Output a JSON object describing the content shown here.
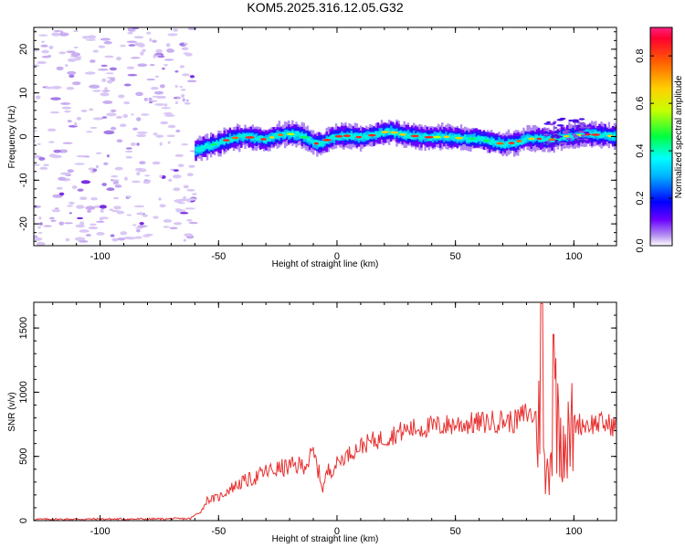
{
  "title": "KOM5.2025.316.12.05.G32",
  "chart_data": [
    {
      "type": "heatmap",
      "name": "spectrogram",
      "xlabel": "Height of straight line (km)",
      "ylabel": "Frequency (Hz)",
      "xlim": [
        -128,
        118
      ],
      "ylim": [
        -25,
        25
      ],
      "xticks": [
        -100,
        -50,
        0,
        50,
        100
      ],
      "yticks": [
        -20,
        -10,
        0,
        10,
        20
      ],
      "colorbar": {
        "label": "Normalized spectral amplitude",
        "range": [
          0.0,
          0.92
        ],
        "ticks": [
          "0.0",
          "0.2",
          "0.4",
          "0.6",
          "0.8"
        ]
      },
      "noise_region_km": [
        -128,
        -60
      ],
      "ridge": [
        {
          "x": -60,
          "f": -3
        },
        {
          "x": -57,
          "f": -2.5
        },
        {
          "x": -50,
          "f": -1.5
        },
        {
          "x": -45,
          "f": -0.5
        },
        {
          "x": -40,
          "f": 0
        },
        {
          "x": -35,
          "f": -0.3
        },
        {
          "x": -30,
          "f": -0.7
        },
        {
          "x": -25,
          "f": 0.3
        },
        {
          "x": -20,
          "f": 0.6
        },
        {
          "x": -15,
          "f": 0.2
        },
        {
          "x": -10,
          "f": -1.5
        },
        {
          "x": -7,
          "f": -1.7
        },
        {
          "x": -3,
          "f": -0.4
        },
        {
          "x": 0,
          "f": 0
        },
        {
          "x": 5,
          "f": 0.2
        },
        {
          "x": 10,
          "f": -0.2
        },
        {
          "x": 15,
          "f": 0.3
        },
        {
          "x": 18,
          "f": 0.8
        },
        {
          "x": 22,
          "f": 1.2
        },
        {
          "x": 28,
          "f": 0.4
        },
        {
          "x": 35,
          "f": 0
        },
        {
          "x": 40,
          "f": -0.2
        },
        {
          "x": 45,
          "f": 0
        },
        {
          "x": 50,
          "f": -0.3
        },
        {
          "x": 55,
          "f": -0.5
        },
        {
          "x": 60,
          "f": -0.6
        },
        {
          "x": 65,
          "f": -1.2
        },
        {
          "x": 70,
          "f": -1.7
        },
        {
          "x": 75,
          "f": -1.4
        },
        {
          "x": 80,
          "f": -0.5
        },
        {
          "x": 85,
          "f": -0.5
        },
        {
          "x": 90,
          "f": -0.8
        },
        {
          "x": 95,
          "f": 0
        },
        {
          "x": 100,
          "f": 0.2
        },
        {
          "x": 105,
          "f": 0.5
        },
        {
          "x": 110,
          "f": 0.4
        },
        {
          "x": 118,
          "f": 0
        }
      ]
    },
    {
      "type": "line",
      "name": "snr",
      "xlabel": "Height of straight line (km)",
      "ylabel": "SNR (v/v)",
      "xlim": [
        -128,
        118
      ],
      "ylim": [
        0,
        1700
      ],
      "xticks": [
        -100,
        -50,
        0,
        50,
        100
      ],
      "yticks": [
        0,
        500,
        1000,
        1500
      ],
      "color": "#e83030",
      "series": [
        {
          "name": "SNR",
          "points": [
            [
              -128,
              10
            ],
            [
              -100,
              12
            ],
            [
              -80,
              12
            ],
            [
              -62,
              15
            ],
            [
              -57,
              80
            ],
            [
              -55,
              160
            ],
            [
              -50,
              180
            ],
            [
              -45,
              250
            ],
            [
              -40,
              300
            ],
            [
              -35,
              330
            ],
            [
              -30,
              380
            ],
            [
              -25,
              400
            ],
            [
              -20,
              420
            ],
            [
              -15,
              430
            ],
            [
              -12,
              460
            ],
            [
              -10,
              520
            ],
            [
              -8,
              400
            ],
            [
              -6,
              250
            ],
            [
              -4,
              380
            ],
            [
              0,
              450
            ],
            [
              5,
              520
            ],
            [
              10,
              580
            ],
            [
              15,
              620
            ],
            [
              20,
              640
            ],
            [
              25,
              680
            ],
            [
              30,
              710
            ],
            [
              35,
              720
            ],
            [
              40,
              730
            ],
            [
              50,
              750
            ],
            [
              60,
              760
            ],
            [
              70,
              780
            ],
            [
              75,
              770
            ],
            [
              80,
              840
            ],
            [
              84,
              800
            ],
            [
              86,
              700
            ],
            [
              88,
              300
            ],
            [
              90,
              500
            ],
            [
              92,
              900
            ],
            [
              95,
              700
            ],
            [
              98,
              600
            ],
            [
              100,
              760
            ],
            [
              105,
              750
            ],
            [
              110,
              760
            ],
            [
              118,
              740
            ]
          ]
        }
      ]
    }
  ]
}
